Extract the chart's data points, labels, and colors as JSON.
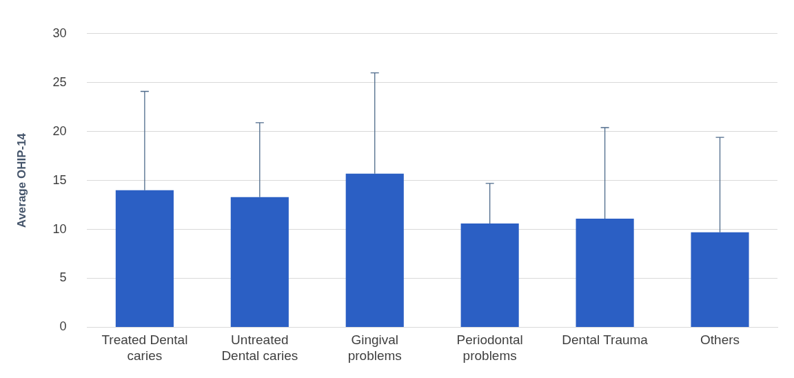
{
  "chart_data": {
    "type": "bar",
    "ylabel": "Average OHIP-14",
    "categories": [
      "Treated Dental caries",
      "Untreated Dental caries",
      "Gingival problems",
      "Periodontal problems",
      "Dental Trauma",
      "Others"
    ],
    "values": [
      14.0,
      13.3,
      15.7,
      10.6,
      11.1,
      9.7
    ],
    "errors": [
      [
        14.0,
        24.1
      ],
      [
        13.3,
        20.9
      ],
      [
        15.7,
        26.0
      ],
      [
        10.6,
        14.7
      ],
      [
        11.1,
        20.4
      ],
      [
        9.7,
        19.4
      ]
    ],
    "color": "#2b5fc4",
    "ylim": [
      0,
      30
    ],
    "yticks": [
      0,
      5,
      10,
      15,
      20,
      25,
      30
    ],
    "grid": "y",
    "legend": false
  }
}
